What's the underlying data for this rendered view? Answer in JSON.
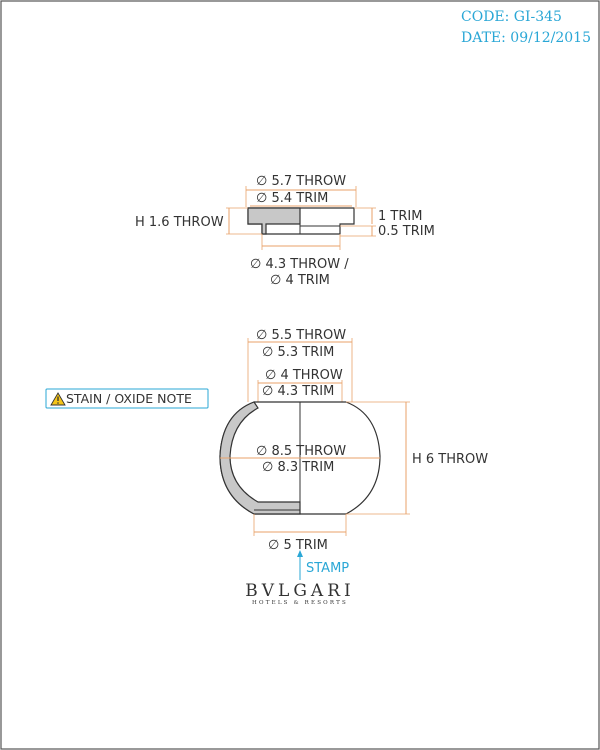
{
  "header": {
    "code": "CODE: GI-345",
    "date": "DATE: 09/12/2015"
  },
  "top_part": {
    "outer_throw": "∅ 5.7 THROW",
    "outer_trim": "∅ 5.4 TRIM",
    "height_throw": "H 1.6 THROW",
    "step_trim": "1 TRIM",
    "base_trim": "0.5 TRIM",
    "inner_line1": "∅ 4.3 THROW /",
    "inner_line2": "∅ 4 TRIM"
  },
  "bottom_part": {
    "rim_throw": "∅ 5.5 THROW",
    "rim_trim": "∅ 5.3 TRIM",
    "neck_throw": "∅ 4 THROW",
    "neck_trim": "∅ 4.3 TRIM",
    "body_throw": "∅ 8.5 THROW",
    "body_trim": "∅ 8.3 TRIM",
    "height_throw": "H 6 THROW",
    "foot_trim": "∅ 5 TRIM"
  },
  "note": {
    "label": "STAIN / OXIDE NOTE",
    "icon": "warning-icon"
  },
  "stamp": {
    "label": "STAMP"
  },
  "logo": {
    "name": "BVLGARI",
    "tagline": "HOTELS & RESORTS"
  },
  "colors": {
    "dimension": "#e8a26a",
    "accent": "#2aa7d6",
    "ink": "#333333"
  }
}
